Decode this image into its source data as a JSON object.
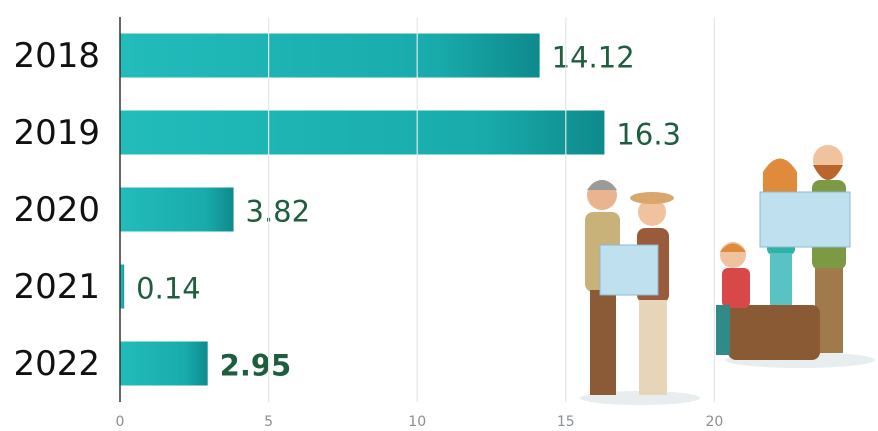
{
  "chart_data": {
    "type": "bar",
    "orientation": "horizontal",
    "categories": [
      "2018",
      "2019",
      "2020",
      "2021",
      "2022"
    ],
    "values": [
      14.12,
      16.3,
      3.82,
      0.14,
      2.95
    ],
    "color": "#1db4b2",
    "xlim": [
      0,
      25
    ],
    "xticks": [
      0,
      5,
      10,
      15,
      20
    ],
    "grid": true
  }
}
